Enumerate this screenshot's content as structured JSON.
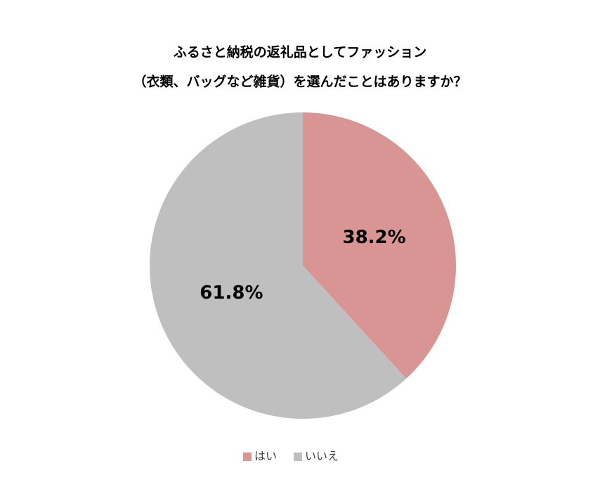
{
  "chart_data": {
    "type": "pie",
    "title": [
      "ふるさと納税の返礼品としてファッション",
      "（衣類、バッグなど雑貨）を選んだことはありますか？"
    ],
    "categories": [
      "はい",
      "いいえ"
    ],
    "values": [
      38.2,
      61.8
    ],
    "value_labels": [
      "38.2%",
      "61.8%"
    ],
    "colors": [
      "#d99594",
      "#bfbfbf"
    ],
    "legend": "bottom"
  }
}
